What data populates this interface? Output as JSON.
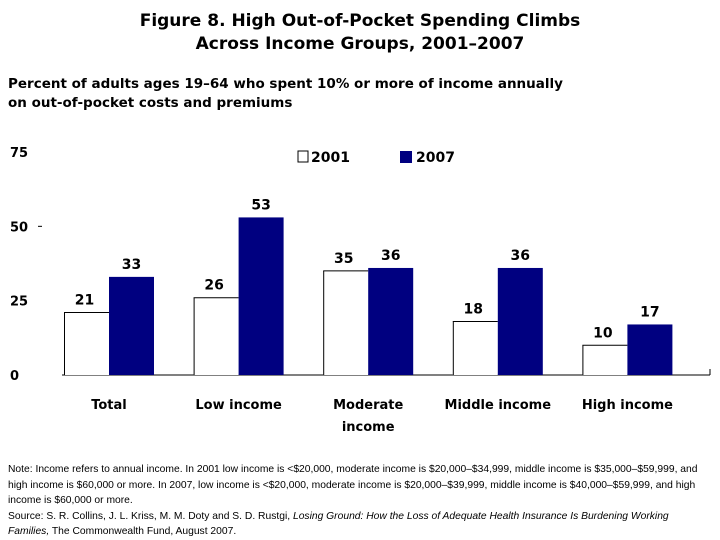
{
  "title_line1": "Figure 8. High Out-of-Pocket Spending Climbs",
  "title_line2": "Across Income Groups, 2001–2007",
  "subtitle_line1": "Percent of adults ages 19–64 who spent 10% or more of income annually",
  "subtitle_line2": "on out-of-pocket costs and premiums",
  "chart_data": {
    "type": "bar",
    "categories": [
      "Total",
      "Low income",
      "Moderate income",
      "Middle income",
      "High income"
    ],
    "series": [
      {
        "name": "2001",
        "values": [
          21,
          26,
          35,
          18,
          10
        ],
        "color": "#ffffff"
      },
      {
        "name": "2007",
        "values": [
          33,
          53,
          36,
          36,
          17
        ],
        "color": "#000080"
      }
    ],
    "ylim": [
      0,
      75
    ],
    "yticks": [
      0,
      25,
      50,
      75
    ],
    "legend_position": "top-center",
    "grid": false
  },
  "note": {
    "text1": "Note: Income refers to annual income. In 2001 low income is <$20,000, moderate income is $20,000–$34,999, middle income is $35,000–$59,999, and high income is $60,000 or more. In 2007, low income is <$20,000, moderate income is $20,000–$39,999, middle income is $40,000–$59,999, and high income is $60,000 or more.",
    "source_prefix": "Source: S. R. Collins, J. L. Kriss, M. M. Doty and S. D. Rustgi, ",
    "source_title": "Losing Ground: How the Loss of Adequate Health Insurance Is Burdening Working Families,",
    "source_suffix": " The Commonwealth Fund, August 2007."
  }
}
